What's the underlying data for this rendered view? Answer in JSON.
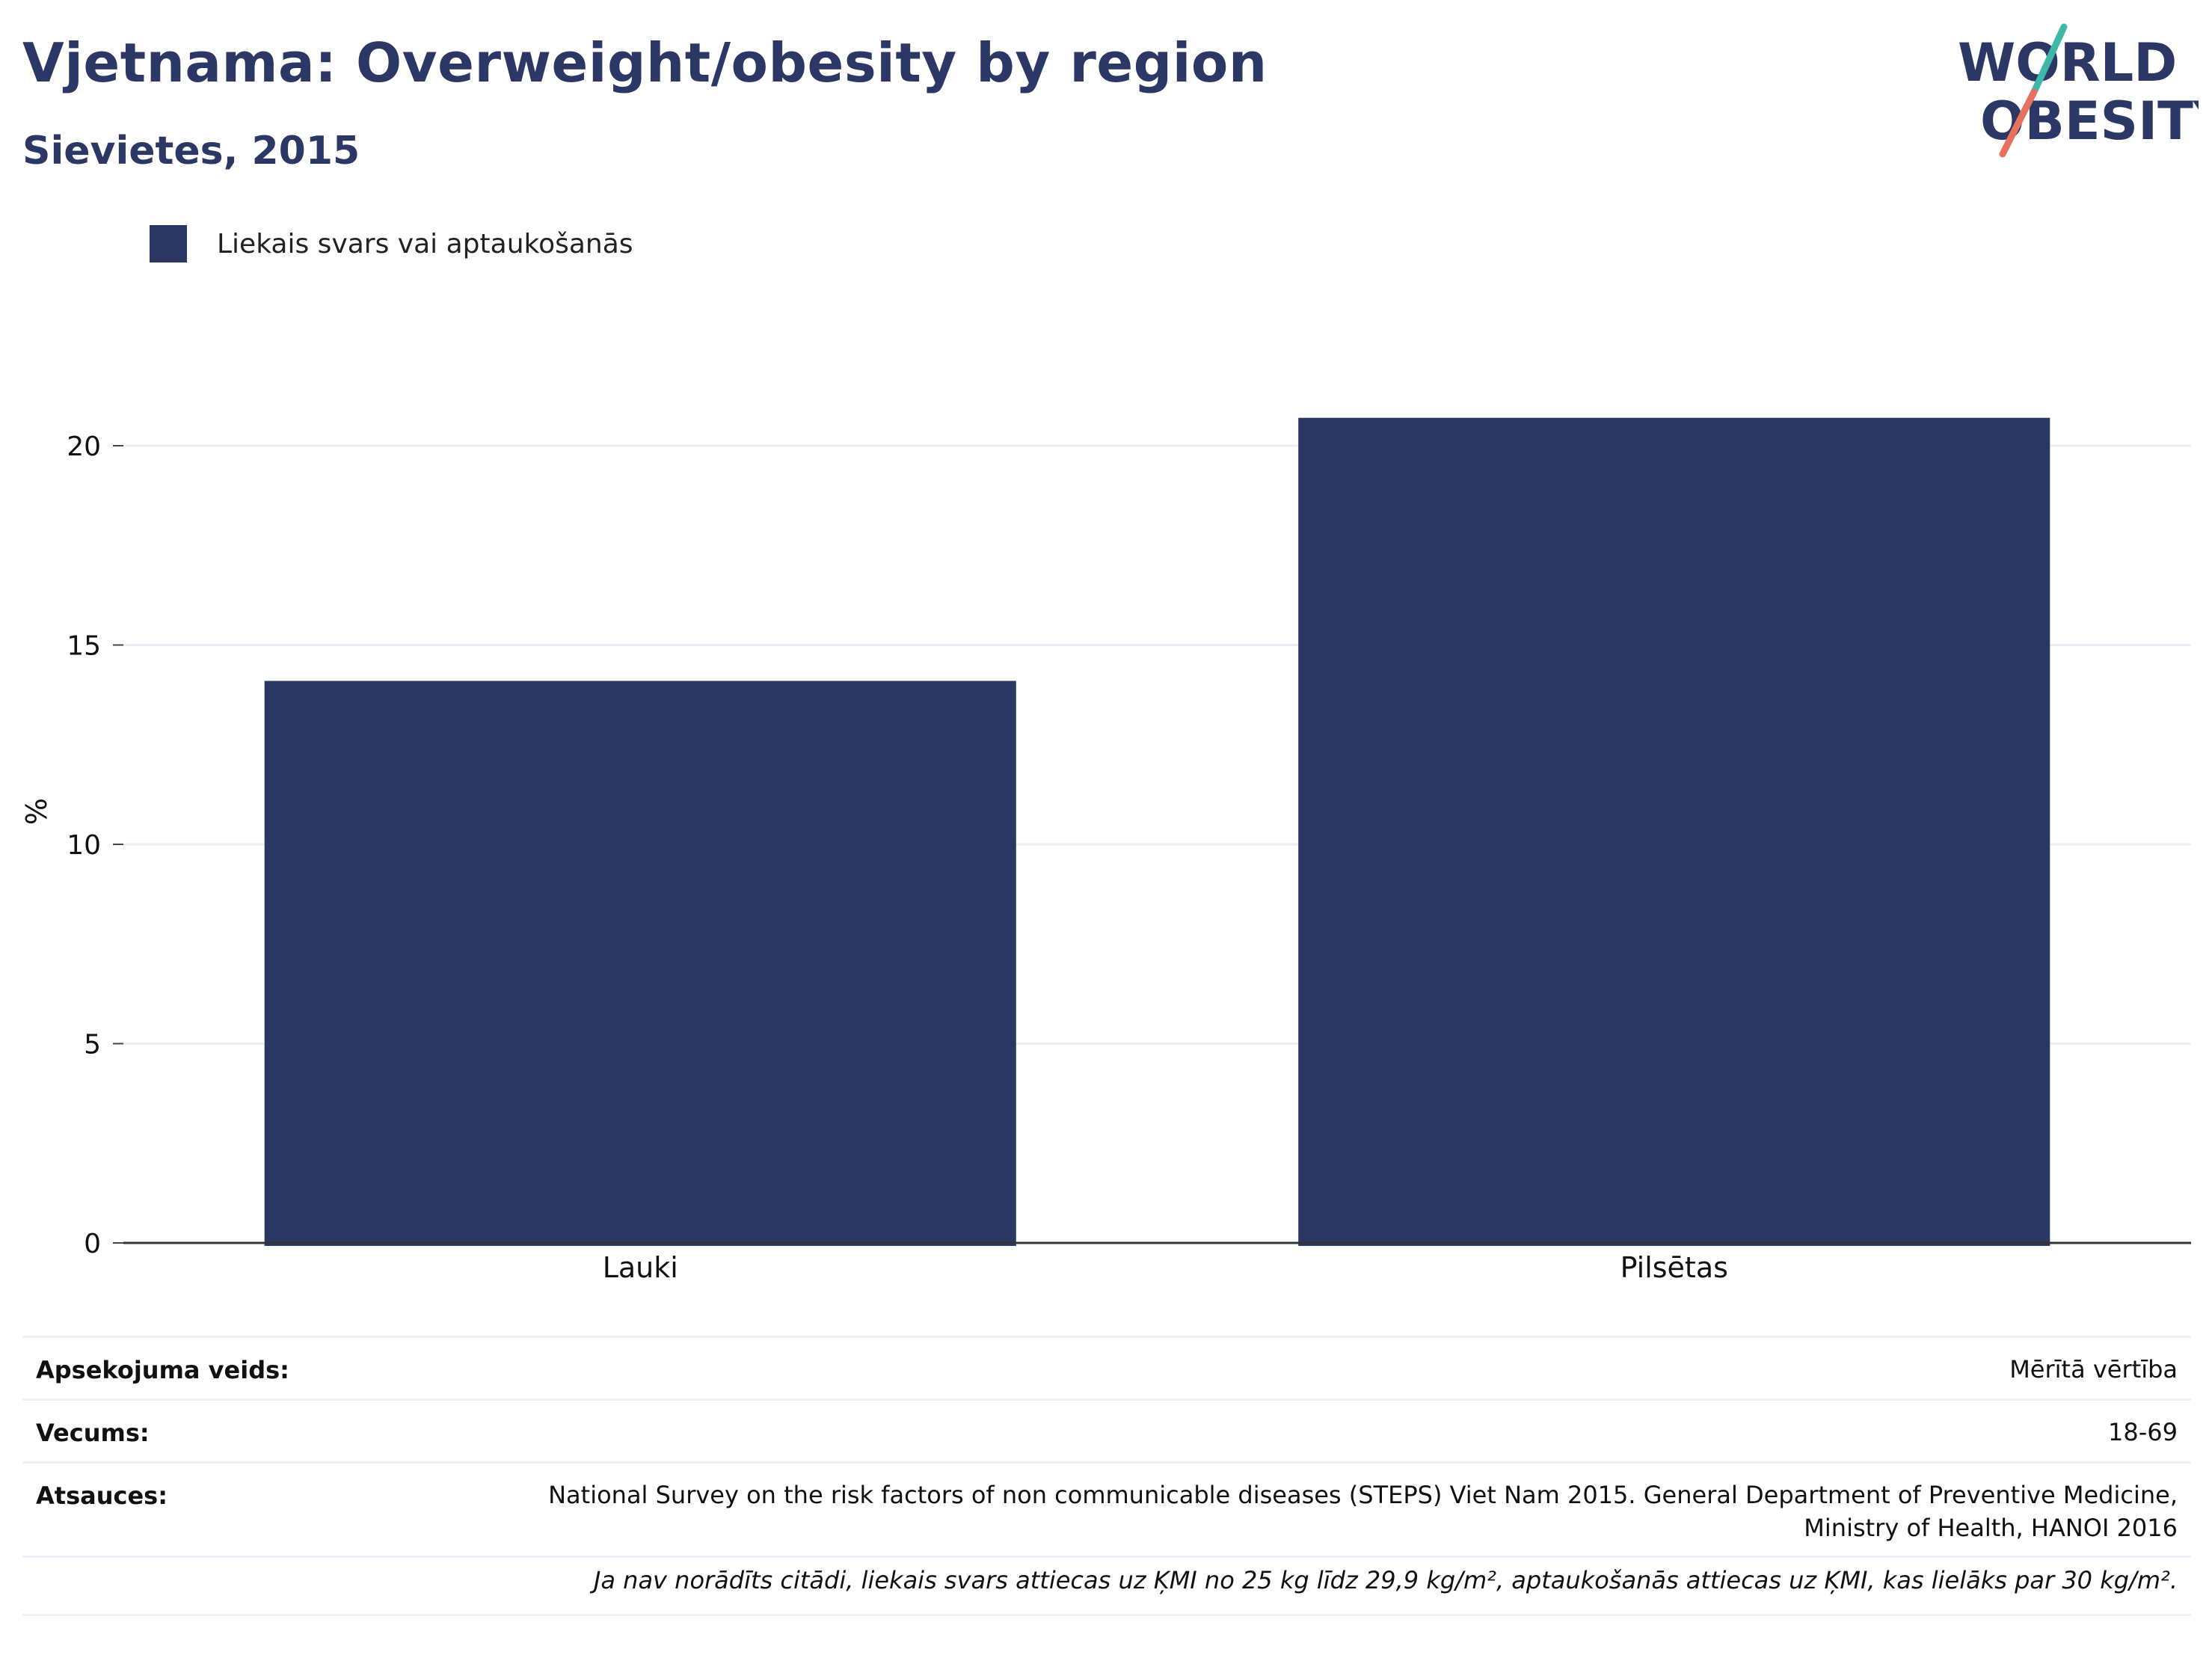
{
  "header": {
    "title": "Vjetnama: Overweight/obesity by region",
    "subtitle": "Sievietes, 2015"
  },
  "logo": {
    "line1": "WORLD",
    "line2": "OBESITY",
    "accent_teal": "#3fb8a8",
    "accent_red": "#e8705e"
  },
  "legend": {
    "label": "Liekais svars vai aptaukošanās",
    "color": "#2a3763"
  },
  "chart_data": {
    "type": "bar",
    "categories": [
      "Lauki",
      "Pilsētas"
    ],
    "series": [
      {
        "name": "Liekais svars vai aptaukošanās",
        "values": [
          14.1,
          20.7
        ],
        "color": "#2a3763"
      }
    ],
    "ylabel": "%",
    "xlabel": "",
    "ylim": [
      0,
      22
    ],
    "yticks": [
      0,
      5,
      10,
      15,
      20
    ],
    "grid": true,
    "legend_position": "top-left"
  },
  "meta": {
    "survey_type": {
      "label": "Apsekojuma veids:",
      "value": "Mērītā vērtība"
    },
    "age": {
      "label": "Vecums:",
      "value": "18-69"
    },
    "sources": {
      "label": "Atsauces:",
      "value_line1": "National Survey on the risk factors of non communicable diseases (STEPS) Viet Nam 2015. General Department of Preventive Medicine,",
      "value_line2": "Ministry of Health, HANOI 2016"
    },
    "note": "Ja nav norādīts citādi, liekais svars attiecas uz ĶMI no 25 kg līdz 29,9 kg/m², aptaukošanās attiecas uz ĶMI, kas lielāks par 30 kg/m²."
  }
}
